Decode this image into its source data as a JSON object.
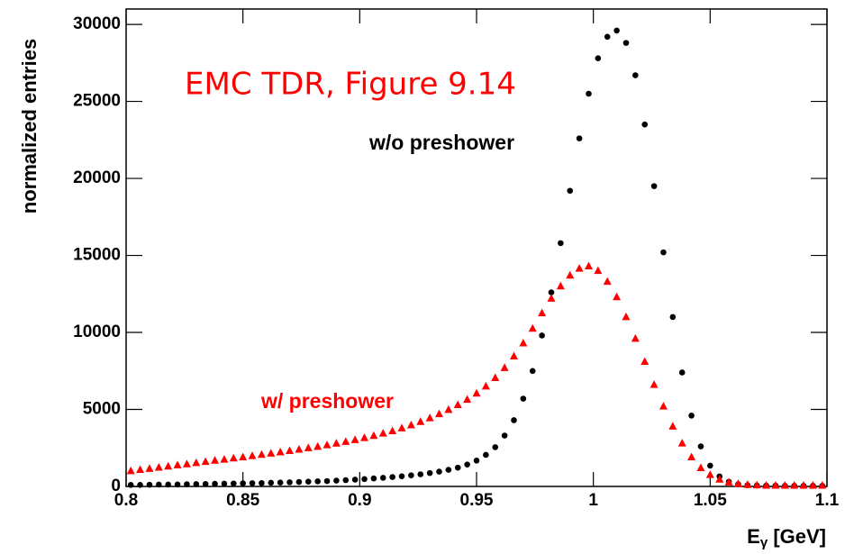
{
  "chart_data": {
    "type": "scatter",
    "annotations": [
      "EMC TDR, Figure 9.14",
      "w/o preshower",
      "w/ preshower"
    ],
    "y_label": "normalized entries",
    "x_label": [
      "E",
      "γ",
      " [GeV]"
    ],
    "xlim": [
      0.8,
      1.1
    ],
    "ylim": [
      0,
      31000
    ],
    "xticks": [
      0.8,
      0.85,
      0.9,
      0.95,
      1,
      1.05,
      1.1
    ],
    "yticks": [
      0,
      5000,
      10000,
      15000,
      20000,
      25000,
      30000
    ],
    "x": [
      0.802,
      0.806,
      0.81,
      0.814,
      0.818,
      0.822,
      0.826,
      0.83,
      0.834,
      0.838,
      0.842,
      0.846,
      0.85,
      0.854,
      0.858,
      0.862,
      0.866,
      0.87,
      0.874,
      0.878,
      0.882,
      0.886,
      0.89,
      0.894,
      0.898,
      0.902,
      0.906,
      0.91,
      0.914,
      0.918,
      0.922,
      0.926,
      0.93,
      0.934,
      0.938,
      0.942,
      0.946,
      0.95,
      0.954,
      0.958,
      0.962,
      0.966,
      0.97,
      0.974,
      0.978,
      0.982,
      0.986,
      0.99,
      0.994,
      0.998,
      1.002,
      1.006,
      1.01,
      1.014,
      1.018,
      1.022,
      1.026,
      1.03,
      1.034,
      1.038,
      1.042,
      1.046,
      1.05,
      1.054,
      1.058,
      1.062,
      1.066,
      1.07,
      1.074,
      1.078,
      1.082,
      1.086,
      1.09,
      1.094,
      1.098
    ],
    "series": [
      {
        "name": "w/o preshower",
        "color": "#000000",
        "marker": "circle",
        "values": [
          100,
          100,
          110,
          120,
          120,
          130,
          140,
          150,
          160,
          170,
          180,
          190,
          200,
          210,
          220,
          240,
          250,
          270,
          290,
          310,
          330,
          350,
          380,
          410,
          440,
          480,
          520,
          560,
          610,
          660,
          720,
          790,
          870,
          960,
          1080,
          1220,
          1420,
          1680,
          2050,
          2550,
          3300,
          4300,
          5700,
          7500,
          9800,
          12600,
          15800,
          19200,
          22600,
          25500,
          27800,
          29200,
          29600,
          28800,
          26700,
          23500,
          19500,
          15200,
          11000,
          7400,
          4600,
          2600,
          1350,
          650,
          300,
          140,
          80,
          60,
          50,
          50,
          40,
          40,
          40,
          40,
          40
        ]
      },
      {
        "name": "w/ preshower",
        "color": "#ff0000",
        "marker": "triangle",
        "values": [
          1000,
          1080,
          1150,
          1230,
          1300,
          1380,
          1450,
          1530,
          1600,
          1680,
          1750,
          1830,
          1900,
          1980,
          2060,
          2140,
          2220,
          2310,
          2400,
          2490,
          2580,
          2680,
          2790,
          2900,
          3020,
          3150,
          3290,
          3440,
          3600,
          3780,
          3980,
          4200,
          4440,
          4700,
          4980,
          5290,
          5640,
          6040,
          6500,
          7050,
          7700,
          8450,
          9300,
          10250,
          11250,
          12200,
          13000,
          13700,
          14150,
          14300,
          14000,
          13300,
          12300,
          11000,
          9600,
          8100,
          6600,
          5200,
          3900,
          2800,
          1900,
          1200,
          750,
          450,
          270,
          170,
          110,
          80,
          60,
          60,
          60,
          60,
          60,
          60,
          60
        ]
      }
    ]
  }
}
